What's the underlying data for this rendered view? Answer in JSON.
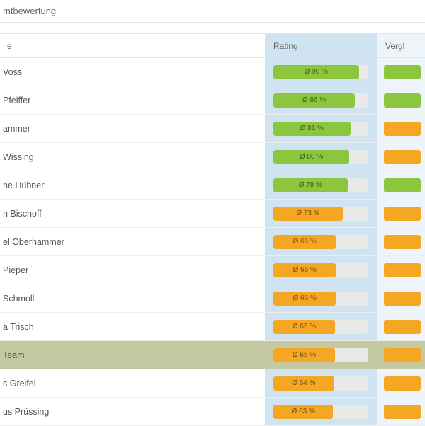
{
  "title": "mtbewertung",
  "header": {
    "nameSuffix": "e",
    "rating": "Rating",
    "compare": "Vergl"
  },
  "colors": {
    "green": "#8cc63f",
    "orange": "#f5a623",
    "ratingBg": "#cfe3f1",
    "compareBg": "#edf4fa",
    "teamBg": "#c4c9a2"
  },
  "rows": [
    {
      "name": "Voss",
      "pct": 90,
      "label": "Ø 90 %",
      "barColor": "green",
      "cmpColor": "green",
      "team": false
    },
    {
      "name": "Pfeiffer",
      "pct": 86,
      "label": "Ø 86 %",
      "barColor": "green",
      "cmpColor": "green",
      "team": false
    },
    {
      "name": "ammer",
      "pct": 81,
      "label": "Ø 81 %",
      "barColor": "green",
      "cmpColor": "orange",
      "team": false
    },
    {
      "name": "Wissing",
      "pct": 80,
      "label": "Ø 80 %",
      "barColor": "green",
      "cmpColor": "orange",
      "team": false
    },
    {
      "name": "ne Hübner",
      "pct": 78,
      "label": "Ø 78 %",
      "barColor": "green",
      "cmpColor": "green",
      "team": false
    },
    {
      "name": "n Bischoff",
      "pct": 73,
      "label": "Ø 73 %",
      "barColor": "orange",
      "cmpColor": "orange",
      "team": false
    },
    {
      "name": "el Oberhammer",
      "pct": 66,
      "label": "Ø 66 %",
      "barColor": "orange",
      "cmpColor": "orange",
      "team": false
    },
    {
      "name": "Pieper",
      "pct": 66,
      "label": "Ø 66 %",
      "barColor": "orange",
      "cmpColor": "orange",
      "team": false
    },
    {
      "name": "Schmoll",
      "pct": 66,
      "label": "Ø 66 %",
      "barColor": "orange",
      "cmpColor": "orange",
      "team": false
    },
    {
      "name": "a Trisch",
      "pct": 65,
      "label": "Ø 65 %",
      "barColor": "orange",
      "cmpColor": "orange",
      "team": false
    },
    {
      "name": "Team",
      "pct": 65,
      "label": "Ø 65 %",
      "barColor": "orange",
      "cmpColor": "orange",
      "team": true
    },
    {
      "name": "s Greifel",
      "pct": 64,
      "label": "Ø 64 %",
      "barColor": "orange",
      "cmpColor": "orange",
      "team": false
    },
    {
      "name": "us Prüssing",
      "pct": 63,
      "label": "Ø 63 %",
      "barColor": "orange",
      "cmpColor": "orange",
      "team": false
    }
  ]
}
